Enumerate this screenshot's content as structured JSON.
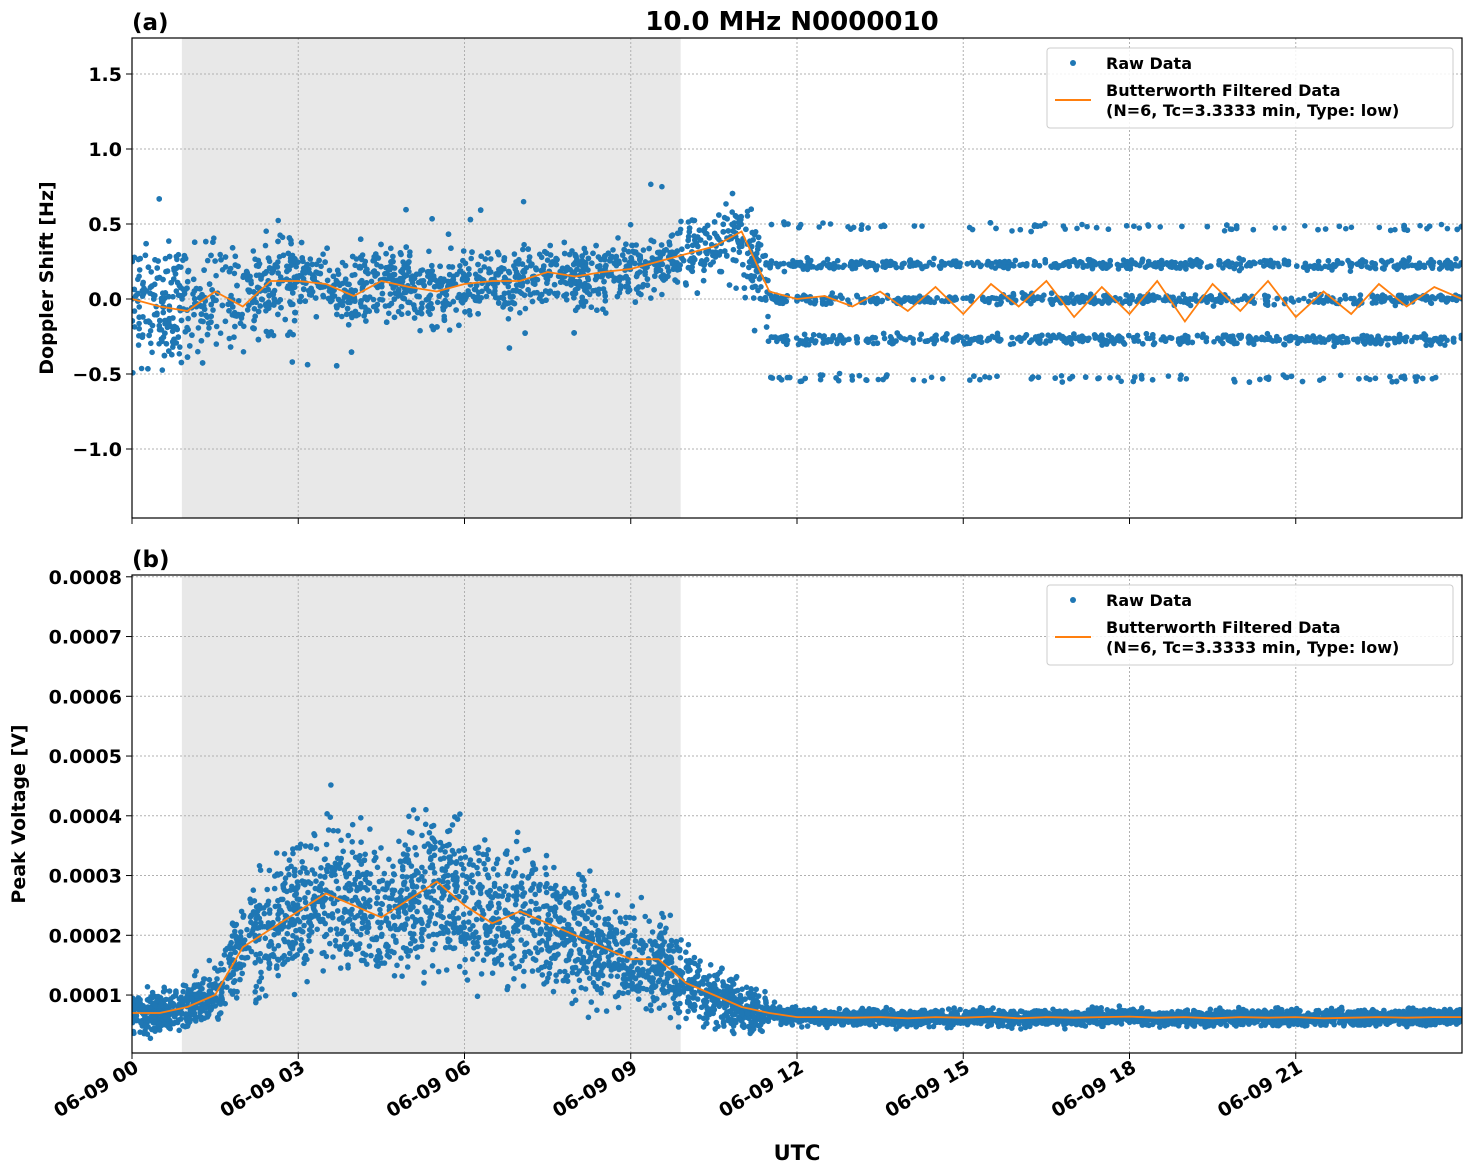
{
  "title": "10.0 MHz N0000010",
  "xlabel": "UTC",
  "x_ticks": [
    {
      "hour": 0,
      "label": "06-09 00"
    },
    {
      "hour": 3,
      "label": "06-09 03"
    },
    {
      "hour": 6,
      "label": "06-09 06"
    },
    {
      "hour": 9,
      "label": "06-09 09"
    },
    {
      "hour": 12,
      "label": "06-09 12"
    },
    {
      "hour": 15,
      "label": "06-09 15"
    },
    {
      "hour": 18,
      "label": "06-09 18"
    },
    {
      "hour": 21,
      "label": "06-09 21"
    }
  ],
  "legend": {
    "raw": "Raw Data",
    "filtered_line1": "Butterworth Filtered Data",
    "filtered_line2": "(N=6, Tc=3.3333 min, Type: low)"
  },
  "colors": {
    "raw": "#1f77b4",
    "filtered": "#ff7f0e",
    "shade": "#e8e8e8"
  },
  "chart_data": [
    {
      "type": "scatter",
      "panel_label": "(a)",
      "ylabel": "Doppler Shift [Hz]",
      "xlim_hours": [
        0,
        24
      ],
      "ylim": [
        -1.46,
        1.74
      ],
      "y_ticks": [
        {
          "v": -1.0,
          "label": "−1.0"
        },
        {
          "v": -0.5,
          "label": "−0.5"
        },
        {
          "v": 0.0,
          "label": "0.0"
        },
        {
          "v": 0.5,
          "label": "0.5"
        },
        {
          "v": 1.0,
          "label": "1.0"
        },
        {
          "v": 1.5,
          "label": "1.5"
        }
      ],
      "grid": true,
      "legend_placement": "upper-right",
      "shaded_interval_hours": [
        0.9,
        9.9
      ],
      "filtered_series": {
        "x_hours_step": 0.5,
        "values": [
          0.0,
          -0.05,
          -0.08,
          0.05,
          -0.05,
          0.12,
          0.12,
          0.1,
          0.02,
          0.12,
          0.08,
          0.05,
          0.1,
          0.12,
          0.12,
          0.18,
          0.15,
          0.18,
          0.2,
          0.25,
          0.3,
          0.35,
          0.45,
          0.05,
          0.0,
          0.02,
          -0.05,
          0.05,
          -0.08,
          0.08,
          -0.1,
          0.1,
          -0.05,
          0.12,
          -0.12,
          0.08,
          -0.1,
          0.12,
          -0.15,
          0.1,
          -0.08,
          0.12,
          -0.12,
          0.05,
          -0.1,
          0.1,
          -0.05,
          0.08,
          0.0
        ]
      },
      "raw_summary": {
        "spread_by_hour": [
          0.55,
          0.55,
          0.5,
          0.35,
          0.35,
          0.35,
          0.3,
          0.3,
          0.3,
          0.3,
          0.35,
          0.45
        ],
        "band_levels_after_11_5h": [
          -0.27,
          0.0,
          0.23
        ],
        "sparse_levels_after_11_5h": [
          -0.53,
          0.48
        ]
      }
    },
    {
      "type": "scatter",
      "panel_label": "(b)",
      "ylabel": "Peak Voltage [V]",
      "xlim_hours": [
        0,
        24
      ],
      "ylim": [
        3e-06,
        0.000803
      ],
      "y_ticks": [
        {
          "v": 0.0001,
          "label": "0.0001"
        },
        {
          "v": 0.0002,
          "label": "0.0002"
        },
        {
          "v": 0.0003,
          "label": "0.0003"
        },
        {
          "v": 0.0004,
          "label": "0.0004"
        },
        {
          "v": 0.0005,
          "label": "0.0005"
        },
        {
          "v": 0.0006,
          "label": "0.0006"
        },
        {
          "v": 0.0007,
          "label": "0.0007"
        },
        {
          "v": 0.0008,
          "label": "0.0008"
        }
      ],
      "grid": true,
      "legend_placement": "upper-right",
      "shaded_interval_hours": [
        0.9,
        9.9
      ],
      "filtered_series": {
        "x_hours_step": 0.5,
        "values": [
          7e-05,
          7e-05,
          8e-05,
          0.0001,
          0.00018,
          0.00021,
          0.00024,
          0.00027,
          0.00025,
          0.00023,
          0.00026,
          0.00029,
          0.00025,
          0.00022,
          0.00024,
          0.00022,
          0.0002,
          0.00018,
          0.00016,
          0.00016,
          0.00012,
          0.0001,
          8e-05,
          7e-05,
          6.3e-05,
          6.3e-05,
          6.2e-05,
          6.3e-05,
          6.1e-05,
          6.3e-05,
          6.2e-05,
          6.4e-05,
          6.1e-05,
          6.3e-05,
          6.2e-05,
          6.3e-05,
          6.4e-05,
          6.2e-05,
          6.3e-05,
          6.1e-05,
          6.3e-05,
          6.2e-05,
          6.3e-05,
          6.1e-05,
          6.2e-05,
          6.3e-05,
          6.2e-05,
          6.3e-05,
          6.3e-05
        ]
      },
      "raw_summary": {
        "relative_spread_before_11h": 0.6,
        "absolute_spread_after_11_5h": 2e-05
      }
    }
  ]
}
